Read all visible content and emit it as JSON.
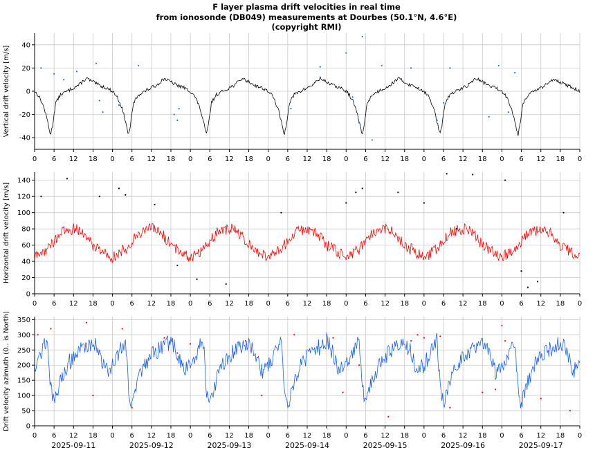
{
  "title_lines": [
    "F layer plasma drift velocities in real time",
    "from ionosonde (DB049) measurements at Dourbes (50.1°N, 4.6°E)",
    "(copyright RMI)"
  ],
  "x_hour_ticks": [
    "0",
    "6",
    "12",
    "18",
    "0",
    "6",
    "12",
    "18",
    "0",
    "6",
    "12",
    "18",
    "0",
    "6",
    "12",
    "18",
    "0",
    "6",
    "12",
    "18",
    "0",
    "6",
    "12",
    "18",
    "0",
    "6",
    "12",
    "18",
    "0"
  ],
  "x_date_labels": [
    "2025-09-11",
    "2025-09-12",
    "2025-09-13",
    "2025-09-14",
    "2025-09-15",
    "2025-09-16",
    "2025-09-17"
  ],
  "colors": {
    "vertical_line": "#000000",
    "vertical_points": "#1f6fe0",
    "horizontal_line": "#ff0000",
    "horizontal_points": "#000000",
    "azimuth_line": "#1a5ee6",
    "azimuth_points": "#ff0000",
    "grid": "#c8c8c8"
  },
  "chart_data": [
    {
      "type": "line",
      "ylabel": "Vertical drift velocity [m/s]",
      "ylim": [
        -50,
        50
      ],
      "yticks": [
        -40,
        -20,
        0,
        20,
        40
      ],
      "x_unit": "hours since 2025-09-11 00:00",
      "xlim": [
        0,
        168
      ],
      "grid": true,
      "series": [
        {
          "style": "line",
          "x": [
            0,
            1,
            2,
            3,
            4,
            4.7,
            5,
            5.6,
            6.5,
            8,
            10,
            12,
            14,
            15,
            16,
            18,
            20,
            22,
            24
          ],
          "y": [
            0,
            -3,
            -8,
            -15,
            -26,
            -35,
            -37,
            -28,
            -10,
            -3,
            0,
            3,
            6,
            9,
            11,
            8,
            5,
            3,
            0
          ]
        },
        {
          "style": "points",
          "x": [
            2,
            6,
            9,
            13,
            19,
            20,
            21,
            26,
            32,
            43,
            44,
            44.5,
            79,
            88,
            96,
            98,
            100,
            101,
            104,
            107,
            116,
            124,
            126,
            128,
            140,
            143,
            146,
            148
          ],
          "y": [
            20,
            15,
            10,
            17,
            24,
            -8,
            -18,
            -12,
            22,
            -20,
            -25,
            -15,
            -15,
            21,
            33,
            -5,
            -27,
            47,
            -42,
            22,
            20,
            -25,
            -10,
            20,
            -22,
            22,
            -18,
            16
          ]
        }
      ]
    },
    {
      "type": "line",
      "ylabel": "Horizontal drift velocity [m/s]",
      "ylim": [
        0,
        150
      ],
      "yticks": [
        0,
        20,
        40,
        60,
        80,
        100,
        120,
        140
      ],
      "x_unit": "hours since 2025-09-11 00:00",
      "xlim": [
        0,
        168
      ],
      "grid": true,
      "series": [
        {
          "style": "line",
          "x": [
            0,
            2,
            4,
            6,
            8,
            10,
            12,
            14,
            16,
            18,
            20,
            22,
            24
          ],
          "y": [
            45,
            50,
            55,
            65,
            75,
            78,
            80,
            78,
            70,
            60,
            55,
            50,
            45
          ]
        },
        {
          "style": "points",
          "x": [
            2,
            10,
            20,
            26,
            28,
            37,
            44,
            50,
            59,
            76,
            96,
            99,
            101,
            112,
            120,
            127,
            130,
            135,
            145,
            150,
            152,
            155,
            163
          ],
          "y": [
            120,
            142,
            120,
            130,
            122,
            110,
            35,
            18,
            12,
            100,
            112,
            125,
            130,
            125,
            112,
            148,
            80,
            147,
            140,
            28,
            8,
            15,
            100
          ]
        }
      ]
    },
    {
      "type": "line",
      "ylabel": "Drift velocity azimuth (0.. is North)",
      "ylim": [
        0,
        360
      ],
      "yticks": [
        0,
        50,
        100,
        150,
        200,
        250,
        300,
        350
      ],
      "x_unit": "hours since 2025-09-11 00:00",
      "xlim": [
        0,
        168
      ],
      "grid": true,
      "series": [
        {
          "style": "line",
          "x": [
            0,
            2,
            3,
            4,
            5,
            6,
            8,
            10,
            12,
            14,
            16,
            18,
            20,
            22,
            24
          ],
          "y": [
            200,
            240,
            270,
            280,
            120,
            70,
            150,
            200,
            230,
            250,
            260,
            280,
            240,
            180,
            200
          ]
        },
        {
          "style": "points",
          "x": [
            1,
            5,
            16,
            18,
            27,
            30,
            40,
            44,
            48,
            65,
            70,
            80,
            92,
            95,
            100,
            109,
            116,
            118,
            120,
            125,
            128,
            138,
            142,
            144,
            145,
            156,
            165
          ],
          "y": [
            300,
            320,
            340,
            100,
            320,
            60,
            290,
            240,
            270,
            280,
            100,
            300,
            290,
            110,
            200,
            30,
            280,
            300,
            290,
            295,
            60,
            110,
            120,
            330,
            280,
            90,
            50
          ]
        }
      ]
    }
  ]
}
